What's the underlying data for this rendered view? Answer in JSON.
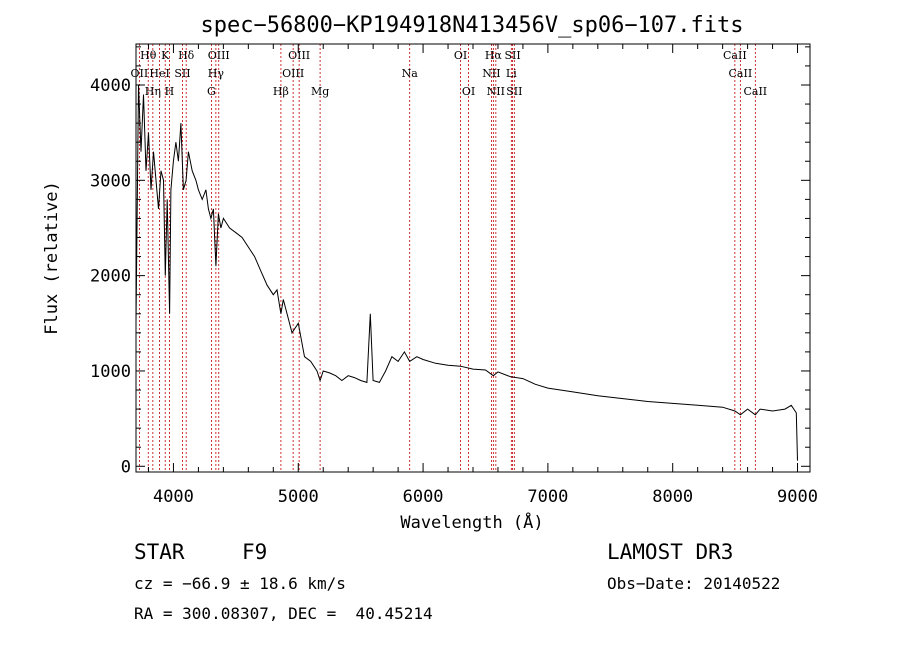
{
  "chart_data": {
    "type": "line",
    "title": "spec−56800−KP194918N413456V_sp06−107.fits",
    "xlabel": "Wavelength (Å)",
    "ylabel": "Flux (relative)",
    "xlim": [
      3700,
      9100
    ],
    "ylim": [
      -60,
      4430
    ],
    "xticks": [
      4000,
      5000,
      6000,
      7000,
      8000,
      9000
    ],
    "yticks": [
      0,
      1000,
      2000,
      3000,
      4000
    ],
    "series": [
      {
        "name": "flux",
        "x": [
          3700,
          3720,
          3740,
          3760,
          3780,
          3800,
          3820,
          3840,
          3860,
          3880,
          3900,
          3920,
          3935,
          3950,
          3969,
          3980,
          4000,
          4020,
          4040,
          4060,
          4080,
          4101,
          4120,
          4150,
          4180,
          4200,
          4230,
          4260,
          4280,
          4300,
          4320,
          4340,
          4360,
          4380,
          4400,
          4450,
          4500,
          4550,
          4600,
          4650,
          4700,
          4750,
          4800,
          4830,
          4861,
          4880,
          4900,
          4950,
          5000,
          5050,
          5100,
          5150,
          5175,
          5200,
          5250,
          5300,
          5350,
          5400,
          5450,
          5500,
          5550,
          5577,
          5600,
          5650,
          5700,
          5750,
          5800,
          5850,
          5893,
          5950,
          6000,
          6100,
          6200,
          6300,
          6400,
          6500,
          6563,
          6600,
          6700,
          6800,
          6900,
          7000,
          7200,
          7400,
          7600,
          7800,
          8000,
          8200,
          8400,
          8498,
          8542,
          8600,
          8662,
          8700,
          8800,
          8900,
          8950,
          8990,
          9000
        ],
        "y": [
          1500,
          4000,
          3300,
          3900,
          3100,
          3500,
          2900,
          3300,
          3000,
          2700,
          3100,
          3000,
          2000,
          2800,
          1600,
          2900,
          3200,
          3400,
          3200,
          3600,
          2900,
          3000,
          3300,
          3100,
          3000,
          2900,
          2800,
          2900,
          2700,
          2600,
          2700,
          2100,
          2650,
          2500,
          2600,
          2500,
          2450,
          2400,
          2300,
          2200,
          2050,
          1900,
          1800,
          1850,
          1600,
          1750,
          1650,
          1400,
          1500,
          1150,
          1100,
          1000,
          900,
          1000,
          980,
          950,
          900,
          950,
          930,
          900,
          880,
          1600,
          900,
          880,
          1000,
          1150,
          1100,
          1200,
          1100,
          1150,
          1120,
          1080,
          1060,
          1050,
          1020,
          1010,
          950,
          990,
          940,
          920,
          860,
          820,
          780,
          740,
          710,
          680,
          660,
          640,
          620,
          580,
          540,
          600,
          540,
          600,
          580,
          600,
          640,
          560,
          60
        ]
      }
    ],
    "spectral_lines": [
      {
        "label": "Hθ",
        "wl": 3798,
        "row": 0
      },
      {
        "label": "K",
        "wl": 3934,
        "row": 0
      },
      {
        "label": "Hδ",
        "wl": 4102,
        "row": 0
      },
      {
        "label": "OIII",
        "wl": 4363,
        "row": 0
      },
      {
        "label": "OIII",
        "wl": 5007,
        "row": 0
      },
      {
        "label": "OI",
        "wl": 6300,
        "row": 0
      },
      {
        "label": "Hα",
        "wl": 6563,
        "row": 0
      },
      {
        "label": "SII",
        "wl": 6717,
        "row": 0
      },
      {
        "label": "CaII",
        "wl": 8498,
        "row": 0
      },
      {
        "label": "OII",
        "wl": 3727,
        "row": 1
      },
      {
        "label": "HeI",
        "wl": 3889,
        "row": 1
      },
      {
        "label": "SII",
        "wl": 4072,
        "row": 1
      },
      {
        "label": "Hγ",
        "wl": 4340,
        "row": 1
      },
      {
        "label": "OIII",
        "wl": 4959,
        "row": 1
      },
      {
        "label": "Na",
        "wl": 5893,
        "row": 1
      },
      {
        "label": "NII",
        "wl": 6548,
        "row": 1
      },
      {
        "label": "Li",
        "wl": 6707,
        "row": 1
      },
      {
        "label": "CaII",
        "wl": 8542,
        "row": 1
      },
      {
        "label": "Hη",
        "wl": 3835,
        "row": 2
      },
      {
        "label": "H",
        "wl": 3968,
        "row": 2
      },
      {
        "label": "G",
        "wl": 4304,
        "row": 2
      },
      {
        "label": "Hβ",
        "wl": 4861,
        "row": 2
      },
      {
        "label": "Mg",
        "wl": 5175,
        "row": 2
      },
      {
        "label": "OI",
        "wl": 6364,
        "row": 2
      },
      {
        "label": "NII",
        "wl": 6583,
        "row": 2
      },
      {
        "label": "SII",
        "wl": 6731,
        "row": 2
      },
      {
        "label": "CaII",
        "wl": 8662,
        "row": 2
      }
    ]
  },
  "info": {
    "object_class": "STAR",
    "subclass": "F9",
    "survey": "LAMOST DR3",
    "redshift": "cz = −66.9 ± 18.6 km/s",
    "obs_date": "Obs−Date: 20140522",
    "coords": "RA = 300.08307, DEC =  40.45214"
  },
  "colors": {
    "line_marker": "#c00000",
    "spectrum": "#000000",
    "axis": "#000000"
  }
}
